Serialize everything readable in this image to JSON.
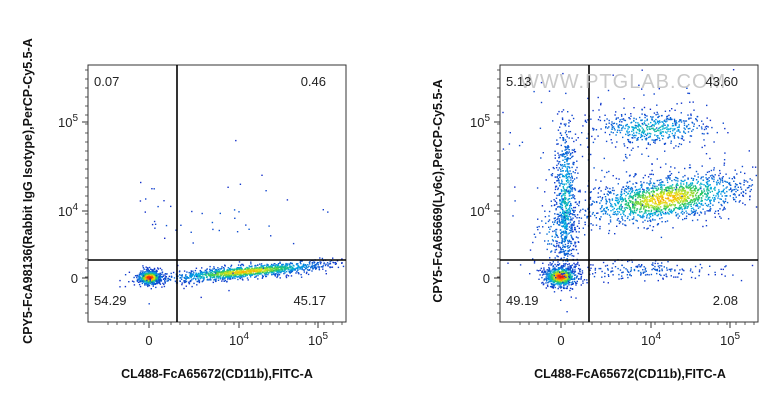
{
  "watermark": "WWW.PTGLAB.COM",
  "chart_data": [
    {
      "type": "scatter",
      "subtype": "flow-cytometry-density-dot-plot",
      "xlabel": "CL488-FcA65672(CD11b),FITC-A",
      "ylabel": "CPY5-FcA98136(Rabbit IgG Isotype),PerCP-Cy5.5-A",
      "x_scale": "biexponential",
      "y_scale": "biexponential",
      "x_ticks": [
        {
          "label": "0",
          "exp": ""
        },
        {
          "label": "10",
          "exp": "4"
        },
        {
          "label": "10",
          "exp": "5"
        }
      ],
      "y_ticks": [
        {
          "label": "0",
          "exp": ""
        },
        {
          "label": "10",
          "exp": "4"
        },
        {
          "label": "10",
          "exp": "5"
        }
      ],
      "quadrants": {
        "upper_left": "0.07",
        "upper_right": "0.46",
        "lower_left": "54.29",
        "lower_right": "45.17"
      },
      "populations": [
        {
          "name": "",
          "center": [
            0,
            0
          ],
          "description": "dense double-negative cluster"
        },
        {
          "name": "",
          "center": [
            10000,
            0
          ],
          "description": "CD11b+ cluster spread along x at y near 0"
        }
      ]
    },
    {
      "type": "scatter",
      "subtype": "flow-cytometry-density-dot-plot",
      "xlabel": "CL488-FcA65672(CD11b),FITC-A",
      "ylabel": "CPY5-FcA65669(Ly6c),PerCP-Cy5.5-A",
      "x_scale": "biexponential",
      "y_scale": "biexponential",
      "x_ticks": [
        {
          "label": "0",
          "exp": ""
        },
        {
          "label": "10",
          "exp": "4"
        },
        {
          "label": "10",
          "exp": "5"
        }
      ],
      "y_ticks": [
        {
          "label": "0",
          "exp": ""
        },
        {
          "label": "10",
          "exp": "4"
        },
        {
          "label": "10",
          "exp": "5"
        }
      ],
      "quadrants": {
        "upper_left": "5.13",
        "upper_right": "43.60",
        "lower_left": "49.19",
        "lower_right": "2.08"
      },
      "populations": [
        {
          "name": "",
          "center": [
            0,
            0
          ],
          "description": "dense double-negative cluster"
        },
        {
          "name": "",
          "center": [
            0,
            20000
          ],
          "description": "Ly6c+ CD11b- vertical streak"
        },
        {
          "name": "",
          "center": [
            20000,
            10000
          ],
          "description": "CD11b+ Ly6c intermediate cluster"
        },
        {
          "name": "",
          "center": [
            15000,
            80000
          ],
          "description": "CD11b+ Ly6c high cluster"
        }
      ]
    }
  ]
}
